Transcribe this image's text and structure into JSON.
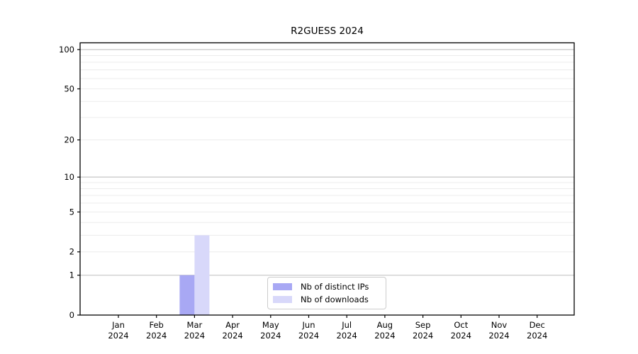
{
  "chart_data": {
    "type": "bar",
    "title": "R2GUESS 2024",
    "categories": [
      "Jan",
      "Feb",
      "Mar",
      "Apr",
      "May",
      "Jun",
      "Jul",
      "Aug",
      "Sep",
      "Oct",
      "Nov",
      "Dec"
    ],
    "year_label": "2024",
    "series": [
      {
        "name": "Nb of distinct IPs",
        "color": "#a8a8f4",
        "values": [
          0,
          0,
          1,
          0,
          0,
          0,
          0,
          0,
          0,
          0,
          0,
          0
        ]
      },
      {
        "name": "Nb of downloads",
        "color": "#d8d8fa",
        "values": [
          0,
          0,
          3,
          0,
          0,
          0,
          0,
          0,
          0,
          0,
          0,
          0
        ]
      }
    ],
    "y_scale": "log1p",
    "ylim": [
      0,
      100
    ],
    "y_tick_labels": [
      0,
      1,
      2,
      5,
      10,
      20,
      50,
      100
    ],
    "gridlines_dark": [
      1,
      10,
      100
    ],
    "gridlines_light": [
      2,
      3,
      4,
      5,
      6,
      7,
      8,
      9,
      20,
      30,
      40,
      50,
      60,
      70,
      80,
      90
    ],
    "grid": "horizontal",
    "legend_position": "bottom-center-inside"
  },
  "colors": {
    "bar_distinct_ips": "#a8a8f4",
    "bar_downloads": "#d8d8fa",
    "grid_major": "#c6c6c6",
    "grid_minor": "#ececec",
    "spine": "#000000",
    "legend_border": "#cccccc",
    "background": "#ffffff"
  }
}
